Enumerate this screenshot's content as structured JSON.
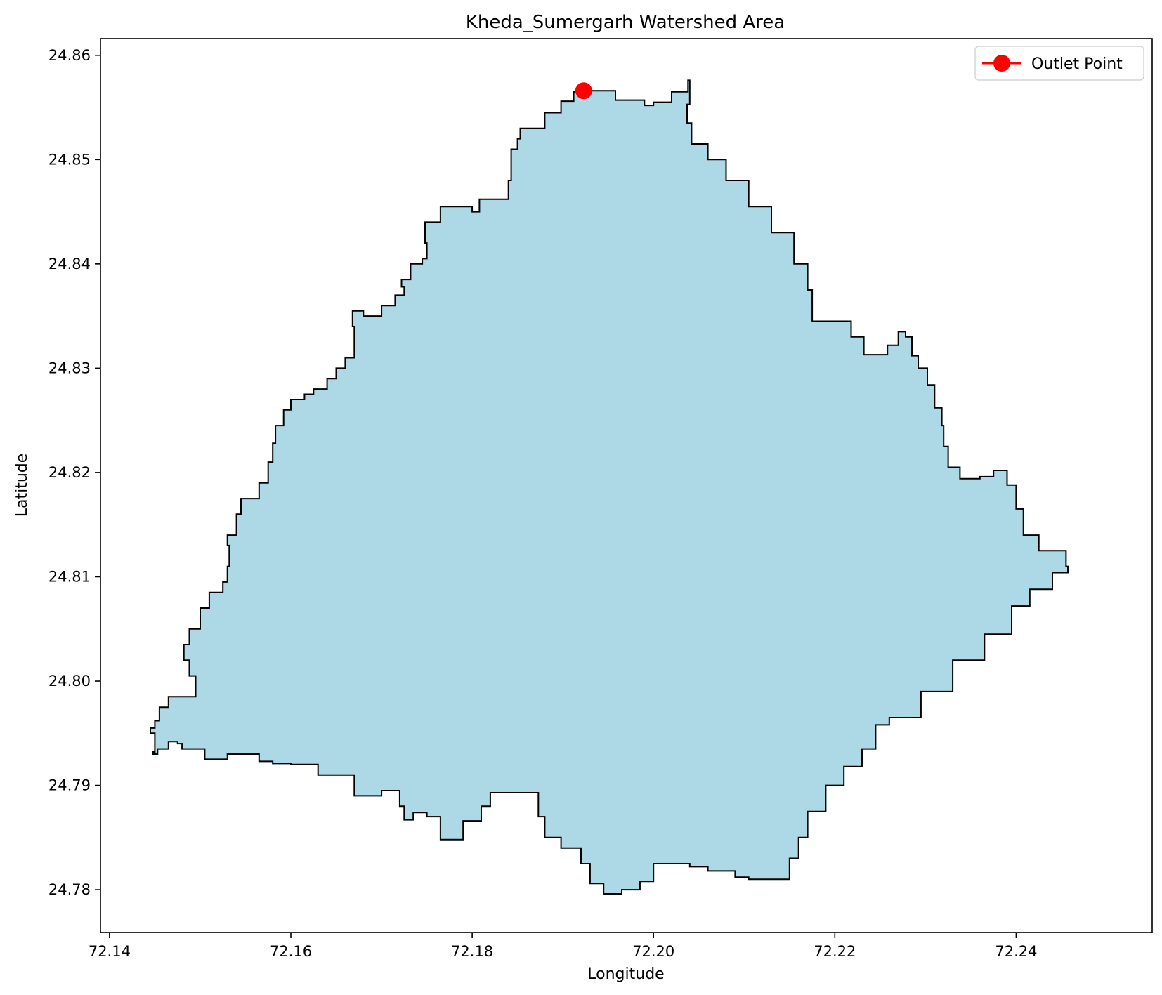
{
  "chart_data": {
    "type": "map",
    "title": "Kheda_Sumergarh Watershed Area",
    "xlabel": "Longitude",
    "ylabel": "Latitude",
    "xlim": [
      72.139,
      72.255
    ],
    "ylim": [
      24.7759,
      24.8616
    ],
    "xticks": [
      72.14,
      72.16,
      72.18,
      72.2,
      72.22,
      72.24
    ],
    "yticks": [
      24.78,
      24.79,
      24.8,
      24.81,
      24.82,
      24.83,
      24.84,
      24.85,
      24.86
    ],
    "tick_decimals": 2,
    "grid": false,
    "legend": {
      "position": "upper-right",
      "entries": [
        "Outlet Point"
      ]
    },
    "colors": {
      "fill": "#add8e6",
      "edge": "#000000",
      "outlet": "#ff0000"
    },
    "outlet": {
      "label": "Outlet Point",
      "lon": 72.1923,
      "lat": 24.8566
    },
    "boundary": [
      [
        72.1923,
        24.8566
      ],
      [
        72.1958,
        24.8557
      ],
      [
        72.199,
        24.8552
      ],
      [
        72.2,
        24.8555
      ],
      [
        72.202,
        24.8565
      ],
      [
        72.2038,
        24.8576
      ],
      [
        72.204,
        24.8553
      ],
      [
        72.2037,
        24.8535
      ],
      [
        72.2042,
        24.8515
      ],
      [
        72.206,
        24.85
      ],
      [
        72.208,
        24.848
      ],
      [
        72.2105,
        24.8455
      ],
      [
        72.213,
        24.843
      ],
      [
        72.2155,
        24.84
      ],
      [
        72.217,
        24.8375
      ],
      [
        72.2175,
        24.8345
      ],
      [
        72.22,
        24.8345
      ],
      [
        72.2218,
        24.833
      ],
      [
        72.2232,
        24.8313
      ],
      [
        72.2258,
        24.8322
      ],
      [
        72.227,
        24.8335
      ],
      [
        72.2278,
        24.833
      ],
      [
        72.2285,
        24.8312
      ],
      [
        72.2292,
        24.83
      ],
      [
        72.2302,
        24.8284
      ],
      [
        72.231,
        24.8262
      ],
      [
        72.2318,
        24.8245
      ],
      [
        72.232,
        24.8225
      ],
      [
        72.2325,
        24.8205
      ],
      [
        72.2338,
        24.8194
      ],
      [
        72.236,
        24.8196
      ],
      [
        72.2375,
        24.8202
      ],
      [
        72.239,
        24.8188
      ],
      [
        72.24,
        24.8165
      ],
      [
        72.2408,
        24.814
      ],
      [
        72.2425,
        24.8125
      ],
      [
        72.2455,
        24.811
      ],
      [
        72.2457,
        24.8104
      ],
      [
        72.244,
        24.8088
      ],
      [
        72.2415,
        24.8072
      ],
      [
        72.2395,
        24.8045
      ],
      [
        72.2365,
        24.802
      ],
      [
        72.233,
        24.799
      ],
      [
        72.2295,
        24.7965
      ],
      [
        72.226,
        24.7958
      ],
      [
        72.2245,
        24.7935
      ],
      [
        72.223,
        24.7918
      ],
      [
        72.221,
        24.79
      ],
      [
        72.219,
        24.7875
      ],
      [
        72.217,
        24.785
      ],
      [
        72.216,
        24.783
      ],
      [
        72.215,
        24.781
      ],
      [
        72.213,
        24.781
      ],
      [
        72.2105,
        24.7812
      ],
      [
        72.209,
        24.7818
      ],
      [
        72.206,
        24.7822
      ],
      [
        72.204,
        24.7825
      ],
      [
        72.2,
        24.7808
      ],
      [
        72.1985,
        24.78
      ],
      [
        72.1965,
        24.7796
      ],
      [
        72.1945,
        24.7806
      ],
      [
        72.193,
        24.7825
      ],
      [
        72.192,
        24.784
      ],
      [
        72.1898,
        24.785
      ],
      [
        72.188,
        24.787
      ],
      [
        72.1873,
        24.7893
      ],
      [
        72.184,
        24.7893
      ],
      [
        72.182,
        24.788
      ],
      [
        72.181,
        24.7866
      ],
      [
        72.179,
        24.7848
      ],
      [
        72.1765,
        24.787
      ],
      [
        72.175,
        24.7874
      ],
      [
        72.1735,
        24.7867
      ],
      [
        72.1725,
        24.788
      ],
      [
        72.172,
        24.7895
      ],
      [
        72.17,
        24.789
      ],
      [
        72.168,
        24.789
      ],
      [
        72.167,
        24.791
      ],
      [
        72.165,
        24.791
      ],
      [
        72.163,
        24.792
      ],
      [
        72.16,
        24.7921
      ],
      [
        72.158,
        24.7923
      ],
      [
        72.1565,
        24.793
      ],
      [
        72.153,
        24.7925
      ],
      [
        72.1505,
        24.7935
      ],
      [
        72.148,
        24.794
      ],
      [
        72.1475,
        24.7942
      ],
      [
        72.1465,
        24.7935
      ],
      [
        72.1455,
        24.7935
      ],
      [
        72.1453,
        24.793
      ],
      [
        72.1448,
        24.7932
      ],
      [
        72.145,
        24.795
      ],
      [
        72.1445,
        24.7955
      ],
      [
        72.145,
        24.7962
      ],
      [
        72.1455,
        24.7975
      ],
      [
        72.1465,
        24.7985
      ],
      [
        72.148,
        24.7985
      ],
      [
        72.1495,
        24.7992
      ],
      [
        72.1495,
        24.8005
      ],
      [
        72.1488,
        24.802
      ],
      [
        72.1482,
        24.8035
      ],
      [
        72.1488,
        24.805
      ],
      [
        72.15,
        24.807
      ],
      [
        72.151,
        24.8085
      ],
      [
        72.1525,
        24.8095
      ],
      [
        72.153,
        24.811
      ],
      [
        72.1532,
        24.813
      ],
      [
        72.153,
        24.814
      ],
      [
        72.154,
        24.816
      ],
      [
        72.1545,
        24.8175
      ],
      [
        72.1565,
        24.819
      ],
      [
        72.1575,
        24.821
      ],
      [
        72.158,
        24.8228
      ],
      [
        72.1583,
        24.8245
      ],
      [
        72.1592,
        24.826
      ],
      [
        72.16,
        24.827
      ],
      [
        72.1615,
        24.8275
      ],
      [
        72.1625,
        24.828
      ],
      [
        72.164,
        24.829
      ],
      [
        72.165,
        24.83
      ],
      [
        72.166,
        24.831
      ],
      [
        72.167,
        24.8325
      ],
      [
        72.167,
        24.834
      ],
      [
        72.1668,
        24.8355
      ],
      [
        72.168,
        24.835
      ],
      [
        72.17,
        24.836
      ],
      [
        72.1715,
        24.837
      ],
      [
        72.1725,
        24.8378
      ],
      [
        72.1722,
        24.8385
      ],
      [
        72.1732,
        24.84
      ],
      [
        72.1745,
        24.8405
      ],
      [
        72.175,
        24.842
      ],
      [
        72.1748,
        24.844
      ],
      [
        72.1765,
        24.8455
      ],
      [
        72.1785,
        24.8455
      ],
      [
        72.18,
        24.845
      ],
      [
        72.1808,
        24.8462
      ],
      [
        72.184,
        24.8462
      ],
      [
        72.184,
        24.848
      ],
      [
        72.1843,
        24.851
      ],
      [
        72.185,
        24.852
      ],
      [
        72.1853,
        24.853
      ],
      [
        72.1868,
        24.853
      ],
      [
        72.188,
        24.8545
      ],
      [
        72.1898,
        24.8556
      ],
      [
        72.1912,
        24.8565
      ]
    ]
  }
}
